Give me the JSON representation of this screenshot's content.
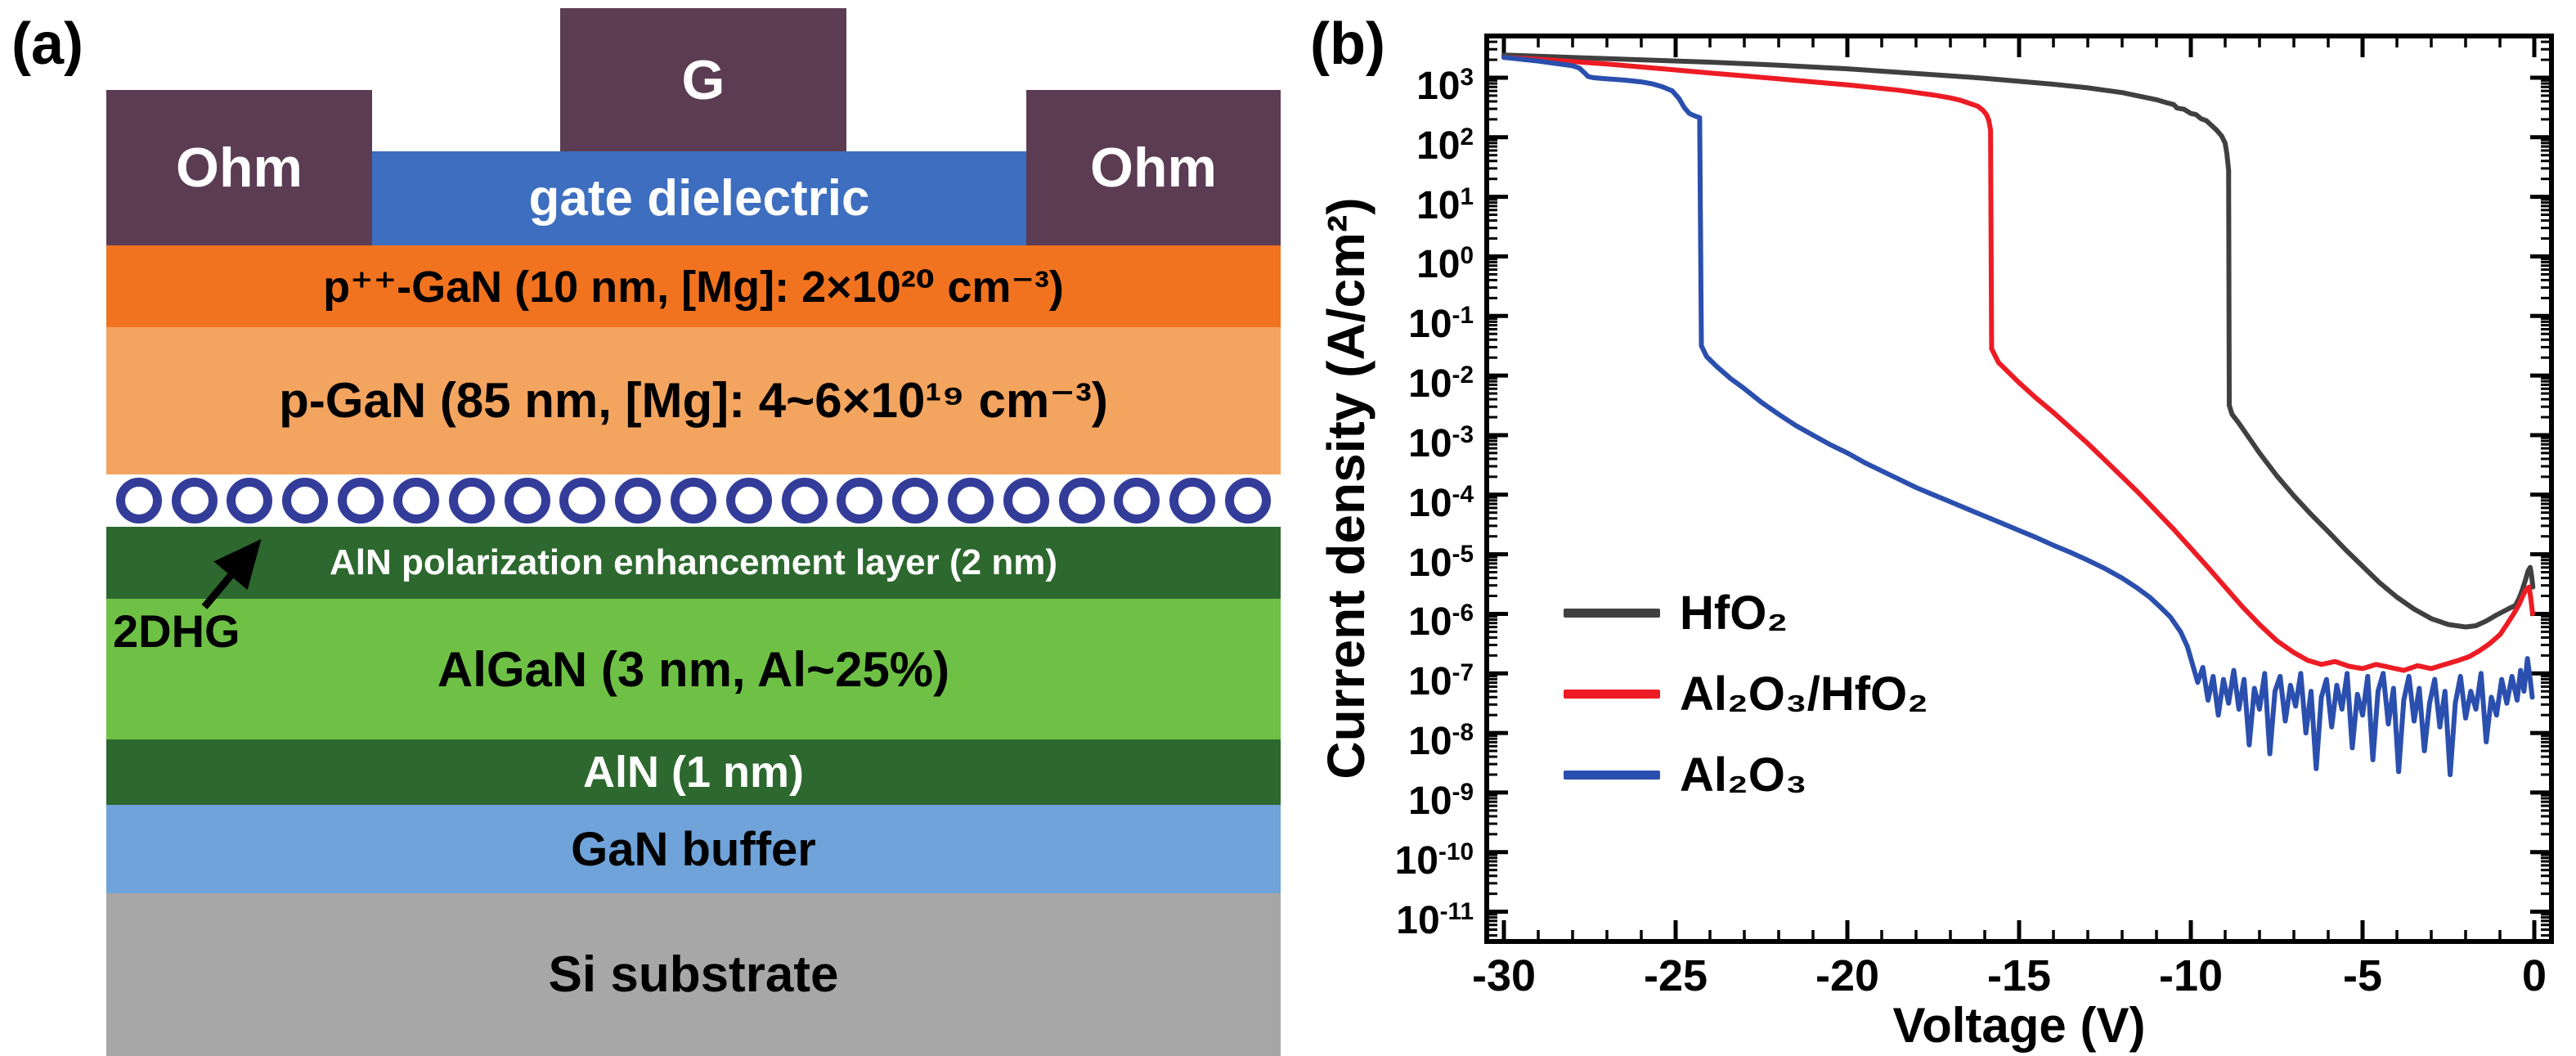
{
  "figure": {
    "panel_a_label": "(a)",
    "panel_b_label": "(b)"
  },
  "diagram": {
    "gate_label": "G",
    "ohm_left_label": "Ohm",
    "ohm_right_label": "Ohm",
    "gate_dielectric_label": "gate dielectric",
    "twodhg_label": "2DHG",
    "circle_count": 21,
    "colors": {
      "contact": "#5b3c52",
      "dielectric": "#3d6ebf",
      "circle_border": "#333d99"
    },
    "layers": [
      {
        "label": "p⁺⁺-GaN (10 nm, [Mg]: 2×10²⁰ cm⁻³)",
        "color": "#f2731f",
        "text_color": "#000000"
      },
      {
        "label": "p-GaN (85 nm, [Mg]: 4~6×10¹⁹ cm⁻³)",
        "color": "#f3a45f",
        "text_color": "#000000"
      },
      {
        "label": "AlN polarization enhancement layer (2 nm)",
        "color": "#2d682e",
        "text_color": "#ffffff"
      },
      {
        "label": "AlGaN (3 nm, Al~25%)",
        "color": "#6ec145",
        "text_color": "#000000"
      },
      {
        "label": "AlN (1 nm)",
        "color": "#2d682e",
        "text_color": "#ffffff"
      },
      {
        "label": "GaN buffer",
        "color": "#6fa3d9",
        "text_color": "#000000"
      },
      {
        "label": "Si substrate",
        "color": "#a7a7a7",
        "text_color": "#000000"
      }
    ]
  },
  "chart_data": {
    "type": "line",
    "title": "",
    "xlabel": "Voltage (V)",
    "ylabel": "Current density (A/cm²)",
    "xlim": [
      -30.5,
      0.5
    ],
    "ylog_lim": [
      -11.5,
      3.7
    ],
    "x_ticks": [
      -30,
      -25,
      -20,
      -15,
      -10,
      -5,
      0
    ],
    "y_tick_exponents": [
      3,
      2,
      1,
      0,
      -1,
      -2,
      -3,
      -4,
      -5,
      -6,
      -7,
      -8,
      -9,
      -10,
      -11
    ],
    "grid": false,
    "legend_position": "middle-left",
    "y_scale": "log10",
    "series": [
      {
        "key": "hfo2",
        "name": "HfO₂",
        "color": "#404040",
        "points": [
          [
            -30,
            3.38
          ],
          [
            -28,
            3.34
          ],
          [
            -26,
            3.3
          ],
          [
            -24,
            3.26
          ],
          [
            -22,
            3.21
          ],
          [
            -20,
            3.15
          ],
          [
            -19,
            3.11
          ],
          [
            -18,
            3.07
          ],
          [
            -17,
            3.03
          ],
          [
            -16,
            2.99
          ],
          [
            -15,
            2.94
          ],
          [
            -14,
            2.89
          ],
          [
            -13,
            2.83
          ],
          [
            -12.5,
            2.79
          ],
          [
            -12,
            2.75
          ],
          [
            -11.5,
            2.69
          ],
          [
            -11,
            2.63
          ],
          [
            -10.7,
            2.58
          ],
          [
            -10.5,
            2.55
          ],
          [
            -10.4,
            2.49
          ],
          [
            -10.2,
            2.47
          ],
          [
            -10,
            2.4
          ],
          [
            -9.85,
            2.38
          ],
          [
            -9.7,
            2.31
          ],
          [
            -9.55,
            2.28
          ],
          [
            -9.4,
            2.2
          ],
          [
            -9.25,
            2.12
          ],
          [
            -9.1,
            2.02
          ],
          [
            -9,
            1.9
          ],
          [
            -8.95,
            1.72
          ],
          [
            -8.9,
            1.45
          ],
          [
            -8.88,
            -2.5
          ],
          [
            -8.8,
            -2.65
          ],
          [
            -8.6,
            -2.8
          ],
          [
            -8.3,
            -3.05
          ],
          [
            -8,
            -3.3
          ],
          [
            -7.5,
            -3.68
          ],
          [
            -7,
            -4.02
          ],
          [
            -6.5,
            -4.33
          ],
          [
            -6,
            -4.62
          ],
          [
            -5.5,
            -4.92
          ],
          [
            -5,
            -5.2
          ],
          [
            -4.5,
            -5.48
          ],
          [
            -4,
            -5.72
          ],
          [
            -3.5,
            -5.92
          ],
          [
            -3,
            -6.08
          ],
          [
            -2.5,
            -6.18
          ],
          [
            -2,
            -6.22
          ],
          [
            -1.7,
            -6.2
          ],
          [
            -1.4,
            -6.12
          ],
          [
            -1.1,
            -6.02
          ],
          [
            -0.9,
            -5.96
          ],
          [
            -0.7,
            -5.9
          ],
          [
            -0.55,
            -5.86
          ],
          [
            -0.45,
            -5.75
          ],
          [
            -0.35,
            -5.6
          ],
          [
            -0.25,
            -5.42
          ],
          [
            -0.18,
            -5.28
          ],
          [
            -0.12,
            -5.22
          ],
          [
            -0.08,
            -5.35
          ],
          [
            -0.04,
            -5.55
          ]
        ]
      },
      {
        "key": "al2o3-hfo2",
        "name": "Al₂O₃/HfO₂",
        "color": "#ed1c24",
        "points": [
          [
            -30,
            3.34
          ],
          [
            -29,
            3.31
          ],
          [
            -28,
            3.27
          ],
          [
            -27,
            3.23
          ],
          [
            -26,
            3.18
          ],
          [
            -25,
            3.13
          ],
          [
            -24,
            3.08
          ],
          [
            -23,
            3.03
          ],
          [
            -22,
            2.98
          ],
          [
            -21,
            2.93
          ],
          [
            -20,
            2.88
          ],
          [
            -19,
            2.82
          ],
          [
            -18.5,
            2.79
          ],
          [
            -18,
            2.75
          ],
          [
            -17.5,
            2.71
          ],
          [
            -17,
            2.66
          ],
          [
            -16.7,
            2.62
          ],
          [
            -16.4,
            2.56
          ],
          [
            -16.2,
            2.52
          ],
          [
            -16.05,
            2.45
          ],
          [
            -15.95,
            2.38
          ],
          [
            -15.88,
            2.28
          ],
          [
            -15.83,
            2.12
          ],
          [
            -15.8,
            -1.55
          ],
          [
            -15.6,
            -1.78
          ],
          [
            -15.3,
            -1.95
          ],
          [
            -15,
            -2.12
          ],
          [
            -14.5,
            -2.38
          ],
          [
            -14,
            -2.62
          ],
          [
            -13.5,
            -2.88
          ],
          [
            -13,
            -3.14
          ],
          [
            -12.5,
            -3.42
          ],
          [
            -12,
            -3.7
          ],
          [
            -11.5,
            -3.98
          ],
          [
            -11,
            -4.28
          ],
          [
            -10.5,
            -4.58
          ],
          [
            -10,
            -4.9
          ],
          [
            -9.5,
            -5.22
          ],
          [
            -9,
            -5.55
          ],
          [
            -8.5,
            -5.88
          ],
          [
            -8,
            -6.18
          ],
          [
            -7.5,
            -6.45
          ],
          [
            -7,
            -6.65
          ],
          [
            -6.6,
            -6.78
          ],
          [
            -6.2,
            -6.85
          ],
          [
            -5.8,
            -6.8
          ],
          [
            -5.4,
            -6.88
          ],
          [
            -5,
            -6.92
          ],
          [
            -4.6,
            -6.85
          ],
          [
            -4.2,
            -6.9
          ],
          [
            -3.8,
            -6.95
          ],
          [
            -3.4,
            -6.87
          ],
          [
            -3,
            -6.92
          ],
          [
            -2.6,
            -6.85
          ],
          [
            -2.2,
            -6.78
          ],
          [
            -1.9,
            -6.72
          ],
          [
            -1.6,
            -6.62
          ],
          [
            -1.3,
            -6.5
          ],
          [
            -1,
            -6.35
          ],
          [
            -0.8,
            -6.18
          ],
          [
            -0.6,
            -6.0
          ],
          [
            -0.45,
            -5.85
          ],
          [
            -0.35,
            -5.72
          ],
          [
            -0.25,
            -5.6
          ],
          [
            -0.15,
            -5.55
          ],
          [
            -0.1,
            -5.75
          ],
          [
            -0.05,
            -6.0
          ]
        ]
      },
      {
        "key": "al2o3",
        "name": "Al₂O₃",
        "color": "#2b4fae",
        "points": [
          [
            -30,
            3.34
          ],
          [
            -29.5,
            3.31
          ],
          [
            -29,
            3.28
          ],
          [
            -28.5,
            3.24
          ],
          [
            -28,
            3.2
          ],
          [
            -27.8,
            3.16
          ],
          [
            -27.65,
            3.08
          ],
          [
            -27.55,
            3.02
          ],
          [
            -27.4,
            3.0
          ],
          [
            -27,
            2.98
          ],
          [
            -26.5,
            2.96
          ],
          [
            -26,
            2.93
          ],
          [
            -25.7,
            2.9
          ],
          [
            -25.4,
            2.85
          ],
          [
            -25.1,
            2.78
          ],
          [
            -24.9,
            2.65
          ],
          [
            -24.75,
            2.5
          ],
          [
            -24.6,
            2.4
          ],
          [
            -24.45,
            2.36
          ],
          [
            -24.3,
            2.33
          ],
          [
            -24.25,
            -1.5
          ],
          [
            -24.1,
            -1.68
          ],
          [
            -23.8,
            -1.85
          ],
          [
            -23.4,
            -2.05
          ],
          [
            -23,
            -2.22
          ],
          [
            -22.5,
            -2.45
          ],
          [
            -22,
            -2.65
          ],
          [
            -21.5,
            -2.84
          ],
          [
            -21,
            -3.0
          ],
          [
            -20.5,
            -3.16
          ],
          [
            -20,
            -3.3
          ],
          [
            -19.5,
            -3.46
          ],
          [
            -19,
            -3.6
          ],
          [
            -18.5,
            -3.74
          ],
          [
            -18,
            -3.88
          ],
          [
            -17.5,
            -4.0
          ],
          [
            -17,
            -4.12
          ],
          [
            -16.5,
            -4.24
          ],
          [
            -16,
            -4.36
          ],
          [
            -15.5,
            -4.48
          ],
          [
            -15,
            -4.6
          ],
          [
            -14.5,
            -4.72
          ],
          [
            -14,
            -4.85
          ],
          [
            -13.5,
            -4.97
          ],
          [
            -13,
            -5.1
          ],
          [
            -12.5,
            -5.24
          ],
          [
            -12,
            -5.4
          ],
          [
            -11.6,
            -5.55
          ],
          [
            -11.2,
            -5.72
          ],
          [
            -10.9,
            -5.88
          ],
          [
            -10.6,
            -6.05
          ],
          [
            -10.3,
            -6.3
          ],
          [
            -10.1,
            -6.55
          ],
          [
            -9.95,
            -6.85
          ],
          [
            -9.8,
            -7.15
          ],
          [
            -9.65,
            -6.9
          ],
          [
            -9.5,
            -7.45
          ],
          [
            -9.35,
            -7.05
          ],
          [
            -9.2,
            -7.7
          ],
          [
            -9.05,
            -7.1
          ],
          [
            -8.9,
            -7.5
          ],
          [
            -8.75,
            -6.95
          ],
          [
            -8.6,
            -7.6
          ],
          [
            -8.45,
            -7.1
          ],
          [
            -8.3,
            -8.2
          ],
          [
            -8.15,
            -7.25
          ],
          [
            -8,
            -7.6
          ],
          [
            -7.85,
            -7.0
          ],
          [
            -7.7,
            -8.35
          ],
          [
            -7.55,
            -7.3
          ],
          [
            -7.4,
            -7.05
          ],
          [
            -7.25,
            -7.8
          ],
          [
            -7.1,
            -7.2
          ],
          [
            -6.95,
            -7.55
          ],
          [
            -6.8,
            -7.0
          ],
          [
            -6.65,
            -8.0
          ],
          [
            -6.5,
            -7.3
          ],
          [
            -6.35,
            -8.6
          ],
          [
            -6.2,
            -7.4
          ],
          [
            -6.05,
            -7.1
          ],
          [
            -5.9,
            -7.9
          ],
          [
            -5.75,
            -7.2
          ],
          [
            -5.6,
            -7.6
          ],
          [
            -5.45,
            -7.0
          ],
          [
            -5.3,
            -8.25
          ],
          [
            -5.15,
            -7.35
          ],
          [
            -5,
            -7.7
          ],
          [
            -4.85,
            -7.05
          ],
          [
            -4.7,
            -8.45
          ],
          [
            -4.55,
            -7.3
          ],
          [
            -4.4,
            -7.0
          ],
          [
            -4.25,
            -7.85
          ],
          [
            -4.1,
            -7.25
          ],
          [
            -3.95,
            -8.65
          ],
          [
            -3.8,
            -7.45
          ],
          [
            -3.65,
            -7.05
          ],
          [
            -3.5,
            -7.8
          ],
          [
            -3.35,
            -7.25
          ],
          [
            -3.2,
            -8.3
          ],
          [
            -3.05,
            -7.5
          ],
          [
            -2.9,
            -7.1
          ],
          [
            -2.75,
            -7.9
          ],
          [
            -2.6,
            -7.3
          ],
          [
            -2.45,
            -8.7
          ],
          [
            -2.3,
            -7.5
          ],
          [
            -2.15,
            -7.05
          ],
          [
            -2,
            -7.75
          ],
          [
            -1.85,
            -7.3
          ],
          [
            -1.7,
            -7.6
          ],
          [
            -1.55,
            -7.0
          ],
          [
            -1.4,
            -8.15
          ],
          [
            -1.25,
            -7.4
          ],
          [
            -1.1,
            -7.7
          ],
          [
            -0.95,
            -7.1
          ],
          [
            -0.8,
            -7.5
          ],
          [
            -0.65,
            -7.05
          ],
          [
            -0.5,
            -7.45
          ],
          [
            -0.4,
            -6.95
          ],
          [
            -0.3,
            -7.3
          ],
          [
            -0.2,
            -6.75
          ],
          [
            -0.12,
            -7.1
          ],
          [
            -0.06,
            -7.4
          ]
        ]
      }
    ]
  }
}
